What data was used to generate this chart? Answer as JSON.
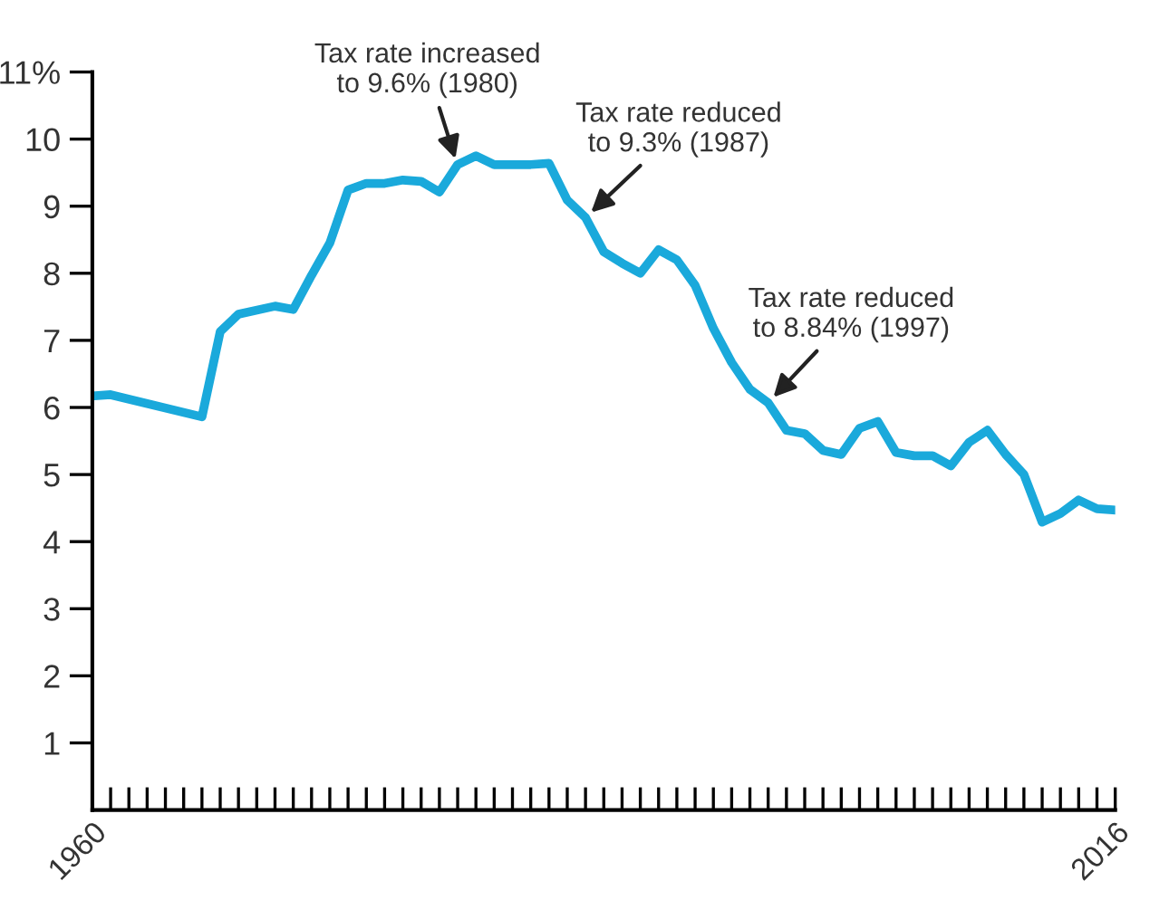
{
  "chart_data": {
    "type": "line",
    "x": [
      1960,
      1961,
      1966,
      1967,
      1968,
      1970,
      1971,
      1972,
      1973,
      1974,
      1975,
      1976,
      1977,
      1978,
      1979,
      1980,
      1981,
      1982,
      1983,
      1984,
      1985,
      1986,
      1987,
      1988,
      1989,
      1990,
      1991,
      1992,
      1993,
      1994,
      1995,
      1996,
      1997,
      1998,
      1999,
      2000,
      2001,
      2002,
      2003,
      2004,
      2005,
      2006,
      2007,
      2008,
      2009,
      2010,
      2011,
      2012,
      2013,
      2014,
      2015,
      2016
    ],
    "series": [
      {
        "color": "#1aa9db",
        "values": [
          6.17,
          6.19,
          5.86,
          7.13,
          7.39,
          7.51,
          7.46,
          7.97,
          8.45,
          9.24,
          9.34,
          9.34,
          9.39,
          9.37,
          9.21,
          9.62,
          9.75,
          9.62,
          9.62,
          9.62,
          9.64,
          9.09,
          8.83,
          8.32,
          8.15,
          8.0,
          8.35,
          8.2,
          7.82,
          7.18,
          6.67,
          6.27,
          6.07,
          5.66,
          5.61,
          5.36,
          5.3,
          5.69,
          5.79,
          5.33,
          5.28,
          5.28,
          5.13,
          5.48,
          5.66,
          5.3,
          5.0,
          4.29,
          4.42,
          4.62,
          4.49,
          4.47
        ]
      }
    ],
    "xlim": [
      1960,
      2016
    ],
    "xticks": [
      {
        "value": 1960,
        "label": "1960"
      },
      {
        "value": 1961,
        "label": null
      },
      {
        "value": 1962,
        "label": null
      },
      {
        "value": 1963,
        "label": null
      },
      {
        "value": 1964,
        "label": null
      },
      {
        "value": 1965,
        "label": null
      },
      {
        "value": 1966,
        "label": null
      },
      {
        "value": 1967,
        "label": null
      },
      {
        "value": 1968,
        "label": null
      },
      {
        "value": 1969,
        "label": null
      },
      {
        "value": 1970,
        "label": null
      },
      {
        "value": 1971,
        "label": null
      },
      {
        "value": 1972,
        "label": null
      },
      {
        "value": 1973,
        "label": null
      },
      {
        "value": 1974,
        "label": null
      },
      {
        "value": 1975,
        "label": null
      },
      {
        "value": 1976,
        "label": null
      },
      {
        "value": 1977,
        "label": null
      },
      {
        "value": 1978,
        "label": null
      },
      {
        "value": 1979,
        "label": null
      },
      {
        "value": 1980,
        "label": null
      },
      {
        "value": 1981,
        "label": null
      },
      {
        "value": 1982,
        "label": null
      },
      {
        "value": 1983,
        "label": null
      },
      {
        "value": 1984,
        "label": null
      },
      {
        "value": 1985,
        "label": null
      },
      {
        "value": 1986,
        "label": null
      },
      {
        "value": 1987,
        "label": null
      },
      {
        "value": 1988,
        "label": null
      },
      {
        "value": 1989,
        "label": null
      },
      {
        "value": 1990,
        "label": null
      },
      {
        "value": 1991,
        "label": null
      },
      {
        "value": 1992,
        "label": null
      },
      {
        "value": 1993,
        "label": null
      },
      {
        "value": 1994,
        "label": null
      },
      {
        "value": 1995,
        "label": null
      },
      {
        "value": 1996,
        "label": null
      },
      {
        "value": 1997,
        "label": null
      },
      {
        "value": 1998,
        "label": null
      },
      {
        "value": 1999,
        "label": null
      },
      {
        "value": 2000,
        "label": null
      },
      {
        "value": 2001,
        "label": null
      },
      {
        "value": 2002,
        "label": null
      },
      {
        "value": 2003,
        "label": null
      },
      {
        "value": 2004,
        "label": null
      },
      {
        "value": 2005,
        "label": null
      },
      {
        "value": 2006,
        "label": null
      },
      {
        "value": 2007,
        "label": null
      },
      {
        "value": 2008,
        "label": null
      },
      {
        "value": 2009,
        "label": null
      },
      {
        "value": 2010,
        "label": null
      },
      {
        "value": 2011,
        "label": null
      },
      {
        "value": 2012,
        "label": null
      },
      {
        "value": 2013,
        "label": null
      },
      {
        "value": 2014,
        "label": null
      },
      {
        "value": 2015,
        "label": null
      },
      {
        "value": 2016,
        "label": "2016"
      }
    ],
    "ylim": [
      0,
      11
    ],
    "yticks": [
      1,
      2,
      3,
      4,
      5,
      6,
      7,
      8,
      9,
      10,
      {
        "value": 11,
        "label": "11%"
      }
    ],
    "grid": false,
    "marker": "none",
    "line_style": "solid",
    "annotations": [
      {
        "text": "Tax rate increased\nto 9.6% (1980)",
        "x": 1980,
        "y": 9.6
      },
      {
        "text": "Tax rate reduced\nto 9.3% (1987)",
        "x": 1987,
        "y": 8.83
      },
      {
        "text": "Tax rate reduced\nto 8.84% (1997)",
        "x": 1997,
        "y": 6.07
      }
    ]
  }
}
